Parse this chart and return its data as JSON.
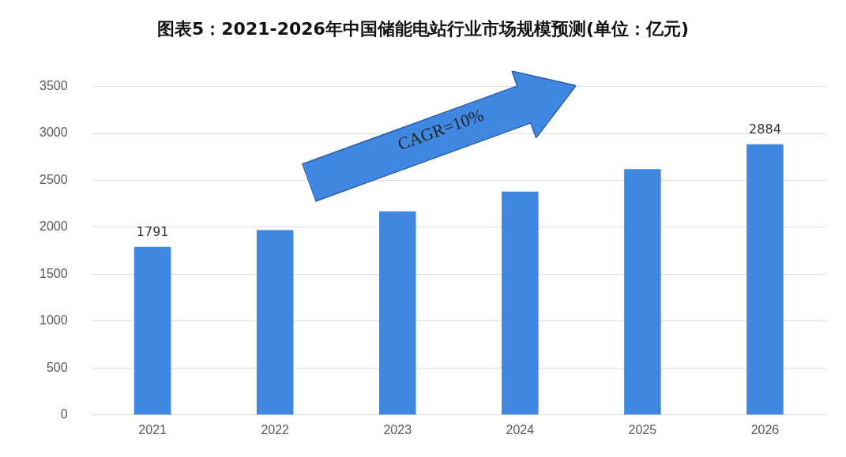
{
  "chart_data": {
    "type": "bar",
    "title": "图表5：2021-2026年中国储能电站行业市场规模预测(单位：亿元)",
    "categories": [
      "2021",
      "2022",
      "2023",
      "2024",
      "2025",
      "2026"
    ],
    "values": [
      1791,
      1970,
      2170,
      2380,
      2620,
      2884
    ],
    "value_labels": [
      "1791",
      null,
      null,
      null,
      null,
      "2884"
    ],
    "color": "#3f87e0",
    "ylim": [
      0,
      3500
    ],
    "yticks": [
      0,
      500,
      1000,
      1500,
      2000,
      2500,
      3000,
      3500
    ],
    "grid": "y",
    "legend": false,
    "annotations": [
      "CAGR=10%"
    ]
  }
}
